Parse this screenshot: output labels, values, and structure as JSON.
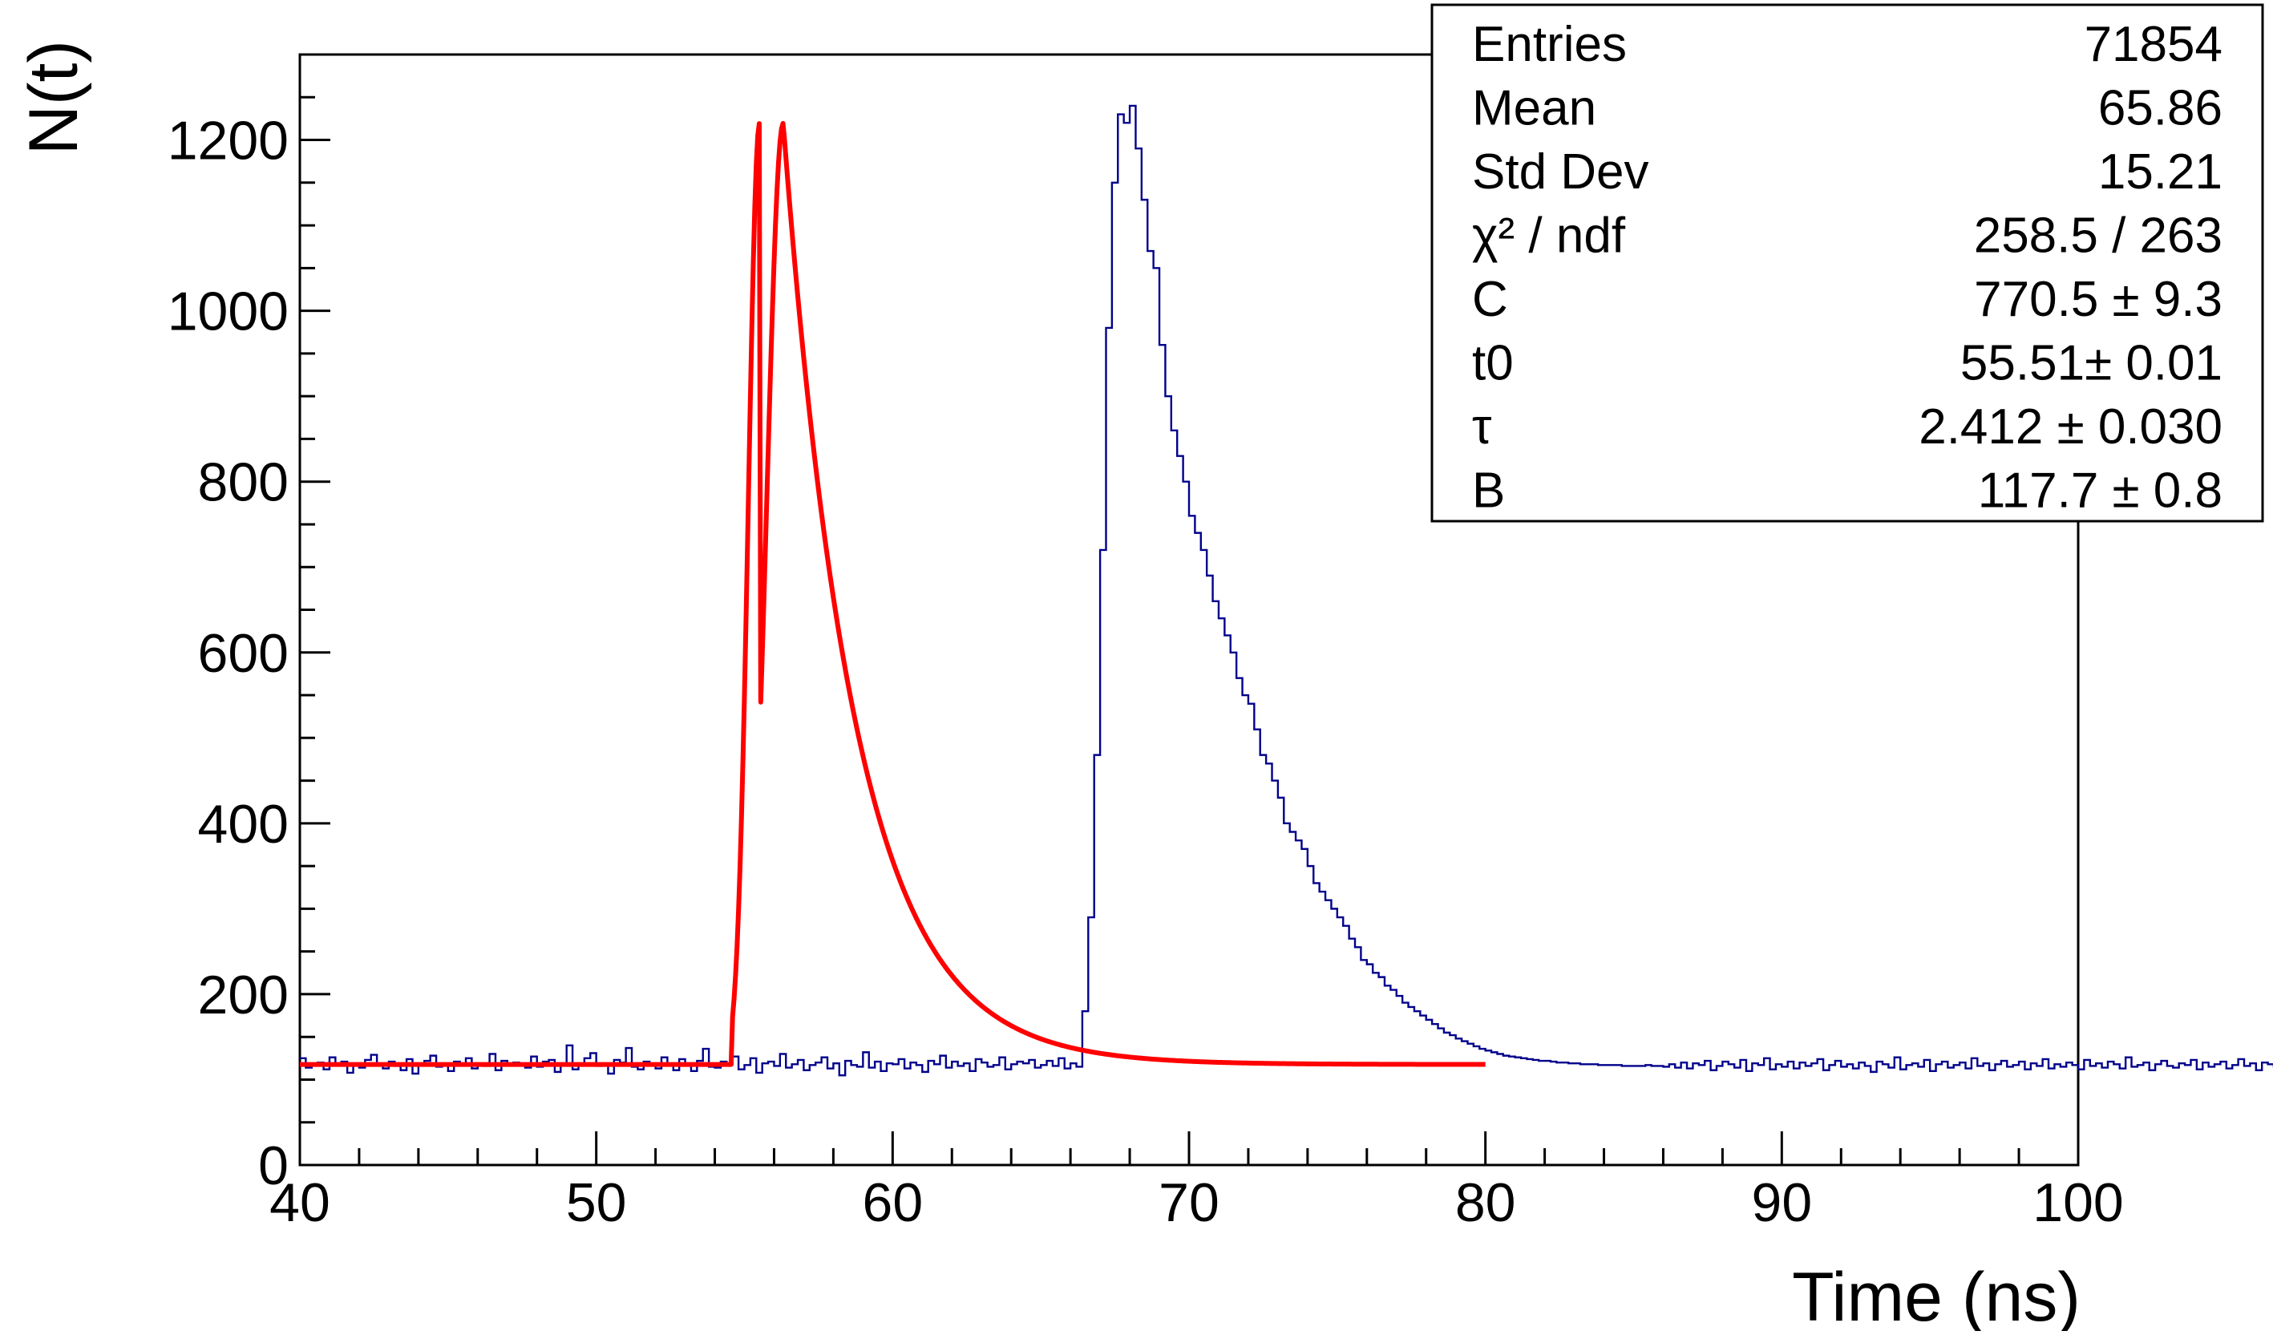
{
  "chart_data": {
    "type": "histogram",
    "title": "",
    "xlabel": "Time (ns)",
    "ylabel": "N(t)",
    "xlim": [
      40,
      100
    ],
    "ylim": [
      0,
      1300
    ],
    "x_ticks": [
      40,
      50,
      60,
      70,
      80,
      90,
      100
    ],
    "y_ticks": [
      0,
      200,
      400,
      600,
      800,
      1000,
      1200
    ],
    "grid": false,
    "colors": {
      "histogram": "#00008b",
      "fit": "#ff0000",
      "axes": "#000000"
    },
    "histogram": {
      "bin_width": 0.2,
      "x_start": 40,
      "counts": [
        125,
        114,
        118,
        120,
        112,
        126,
        117,
        121,
        108,
        119,
        114,
        123,
        129,
        118,
        113,
        121,
        116,
        111,
        124,
        107,
        119,
        122,
        128,
        115,
        117,
        110,
        121,
        118,
        125,
        113,
        119,
        116,
        130,
        111,
        122,
        118,
        120,
        117,
        114,
        127,
        115,
        121,
        123,
        109,
        118,
        140,
        112,
        119,
        125,
        131,
        116,
        118,
        107,
        123,
        120,
        137,
        115,
        112,
        121,
        118,
        113,
        126,
        119,
        111,
        124,
        117,
        110,
        122,
        136,
        115,
        114,
        121,
        118,
        127,
        112,
        117,
        125,
        108,
        119,
        121,
        116,
        130,
        114,
        118,
        123,
        111,
        117,
        120,
        126,
        113,
        119,
        105,
        122,
        117,
        115,
        132,
        114,
        121,
        110,
        119,
        118,
        124,
        113,
        120,
        117,
        109,
        122,
        118,
        128,
        114,
        121,
        116,
        119,
        110,
        124,
        120,
        115,
        117,
        126,
        112,
        118,
        121,
        119,
        123,
        114,
        117,
        122,
        116,
        125,
        113,
        119,
        115,
        180,
        290,
        480,
        720,
        980,
        1150,
        1230,
        1220,
        1240,
        1190,
        1130,
        1070,
        1050,
        960,
        900,
        860,
        830,
        800,
        760,
        740,
        720,
        690,
        660,
        640,
        620,
        600,
        570,
        550,
        540,
        510,
        480,
        470,
        450,
        430,
        400,
        390,
        380,
        370,
        350,
        330,
        320,
        310,
        300,
        290,
        280,
        265,
        255,
        240,
        235,
        225,
        220,
        210,
        205,
        198,
        190,
        185,
        180,
        175,
        170,
        165,
        160,
        155,
        152,
        148,
        145,
        142,
        139,
        136,
        134,
        132,
        130,
        128,
        127,
        126,
        125,
        124,
        123,
        122,
        122,
        121,
        120,
        120,
        119,
        119,
        118,
        118,
        118,
        117,
        117,
        117,
        117,
        116,
        116,
        116,
        116,
        117,
        116,
        116,
        115,
        118,
        114,
        120,
        113,
        119,
        117,
        122,
        111,
        116,
        121,
        118,
        114,
        123,
        110,
        119,
        117,
        125,
        112,
        118,
        115,
        121,
        113,
        120,
        116,
        119,
        124,
        111,
        117,
        122,
        115,
        118,
        113,
        120,
        116,
        109,
        121,
        118,
        114,
        126,
        112,
        117,
        119,
        115,
        123,
        110,
        118,
        121,
        114,
        117,
        120,
        113,
        125,
        116,
        119,
        111,
        118,
        122,
        115,
        117,
        121,
        112,
        119,
        116,
        124,
        113,
        118,
        115,
        120,
        117,
        112,
        123,
        116,
        119,
        114,
        121,
        118,
        113,
        126,
        115,
        117,
        120,
        111,
        118,
        122,
        116,
        114,
        119,
        117,
        123,
        112,
        120,
        115,
        118,
        121,
        113,
        117,
        124,
        116,
        119,
        111,
        120,
        118,
        115,
        122,
        114,
        117,
        121,
        113,
        130,
        116,
        119,
        112,
        118,
        120,
        115,
        123,
        111,
        117,
        128,
        116,
        114,
        119,
        121,
        113,
        118,
        115,
        120,
        132,
        117,
        112,
        124,
        116,
        119,
        114,
        121,
        118,
        113,
        126,
        115,
        117,
        120,
        112,
        118,
        122,
        116,
        114,
        119,
        117,
        123,
        112,
        120,
        115,
        118,
        121,
        113,
        117,
        124,
        116,
        145,
        111,
        120,
        118,
        135,
        122,
        114,
        117,
        121,
        113,
        119,
        116,
        125,
        112
      ]
    },
    "fit": {
      "function": "C*exp(-(t-t0)/tau)+B, gaussian-rise",
      "x_range": [
        40,
        80
      ],
      "C": 770.5,
      "t0": 55.51,
      "tau": 2.412,
      "B": 117.7,
      "rise_sigma": 0.5
    },
    "stats_box": {
      "position": "top-right",
      "rows": [
        {
          "label": "Entries",
          "value": "71854"
        },
        {
          "label": "Mean",
          "value": "65.86"
        },
        {
          "label": "Std Dev",
          "value": "15.21"
        },
        {
          "label": "χ² / ndf",
          "value": "258.5 / 263"
        },
        {
          "label": "C",
          "value": "770.5 ± 9.3"
        },
        {
          "label": "t0",
          "value": "55.51± 0.01"
        },
        {
          "label": "τ",
          "value": "2.412 ± 0.030"
        },
        {
          "label": "B",
          "value": "117.7 ± 0.8"
        }
      ]
    }
  }
}
